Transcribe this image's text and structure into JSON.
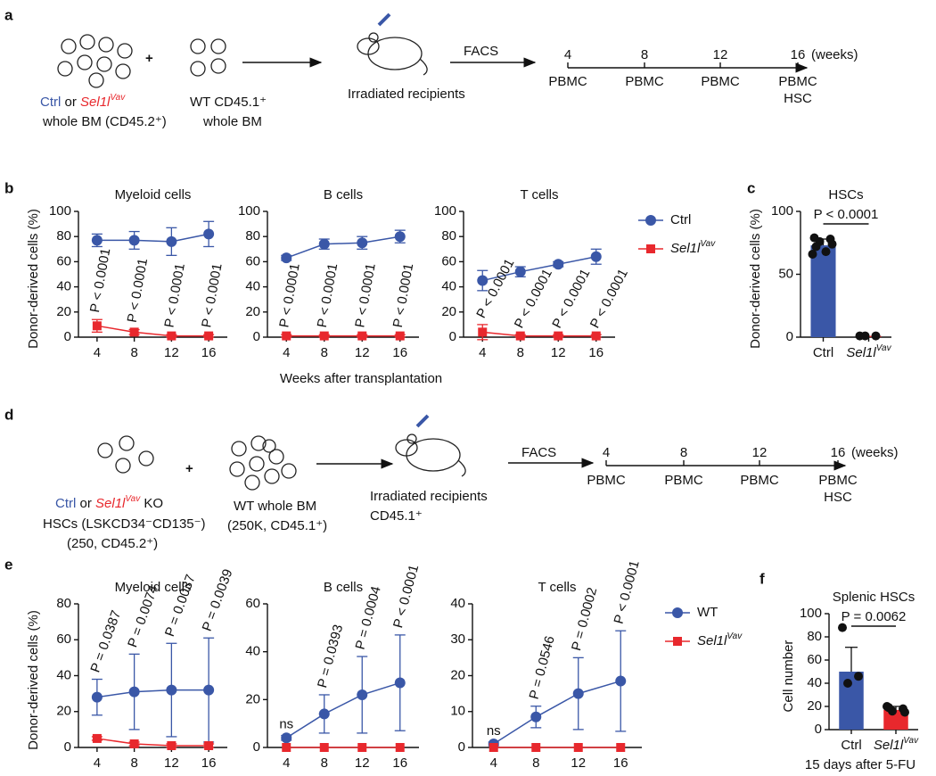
{
  "panel_labels": [
    "a",
    "b",
    "c",
    "d",
    "e",
    "f"
  ],
  "diagram_a": {
    "donor_ctrl": "Ctrl",
    "donor_or": "or",
    "donor_sel": "Sel1l",
    "donor_sel_sup": "Vav",
    "donor_line2": "whole BM (CD45.2⁺)",
    "plus": "+",
    "wt_line1": "WT CD45.1⁺",
    "wt_line2": "whole BM",
    "recipients": "Irradiated recipients",
    "facs": "FACS",
    "timeline_ticks": [
      "4",
      "8",
      "12",
      "16"
    ],
    "timeline_unit": "(weeks)",
    "samples": [
      "PBMC",
      "PBMC",
      "PBMC",
      "PBMC"
    ],
    "final_sample": "HSC"
  },
  "diagram_d": {
    "donor_ctrl": "Ctrl",
    "donor_or": "or",
    "donor_sel": "Sel1l",
    "donor_sel_sup": "Vav",
    "donor_ko": "KO",
    "donor_line2": "HSCs (LSKCD34⁻CD135⁻)",
    "donor_line3": "(250, CD45.2⁺)",
    "plus": "+",
    "wt_line1": "WT whole BM",
    "wt_line2": "(250K, CD45.1⁺)",
    "recipients": "Irradiated recipients",
    "recipients_line2": "CD45.1⁺",
    "facs": "FACS",
    "timeline_ticks": [
      "4",
      "8",
      "12",
      "16"
    ],
    "timeline_unit": "(weeks)",
    "samples": [
      "PBMC",
      "PBMC",
      "PBMC",
      "PBMC"
    ],
    "final_sample": "HSC"
  },
  "chart_data": [
    {
      "type": "line",
      "title": "Myeloid cells",
      "y_label": "Donor-derived cells (%)",
      "categories": [
        "4",
        "8",
        "12",
        "16"
      ],
      "ylim": [
        0,
        100
      ],
      "yticks": [
        0,
        20,
        40,
        60,
        80,
        100
      ],
      "series": [
        {
          "color": "#3a57a7",
          "marker": "circle",
          "values": [
            77,
            77,
            76,
            82
          ],
          "errors": [
            5,
            7,
            11,
            10
          ]
        },
        {
          "color": "#e8282d",
          "marker": "square",
          "values": [
            9,
            4,
            1,
            1
          ],
          "errors": [
            5,
            2,
            1,
            1
          ]
        }
      ],
      "annotations": [
        "P < 0.0001",
        "P < 0.0001",
        "P < 0.0001",
        "P < 0.0001"
      ]
    },
    {
      "type": "line",
      "title": "B cells",
      "x_label": "Weeks after transplantation",
      "categories": [
        "4",
        "8",
        "12",
        "16"
      ],
      "ylim": [
        0,
        100
      ],
      "yticks": [
        0,
        20,
        40,
        60,
        80,
        100
      ],
      "series": [
        {
          "color": "#3a57a7",
          "marker": "circle",
          "values": [
            63,
            74,
            75,
            80
          ],
          "errors": [
            2,
            4,
            5,
            5
          ]
        },
        {
          "color": "#e8282d",
          "marker": "square",
          "values": [
            1,
            1,
            1,
            1
          ],
          "errors": [
            1,
            1,
            1,
            1
          ]
        }
      ],
      "annotations": [
        "P < 0.0001",
        "P < 0.0001",
        "P < 0.0001",
        "P < 0.0001"
      ]
    },
    {
      "type": "line",
      "title": "T cells",
      "legend": true,
      "categories": [
        "4",
        "8",
        "12",
        "16"
      ],
      "ylim": [
        0,
        100
      ],
      "yticks": [
        0,
        20,
        40,
        60,
        80,
        100
      ],
      "series": [
        {
          "name": "Ctrl",
          "color": "#3a57a7",
          "marker": "circle",
          "values": [
            45,
            52,
            58,
            64
          ],
          "errors": [
            8,
            4,
            2,
            6
          ]
        },
        {
          "name": "Sel1l",
          "name_sup": "Vav",
          "color": "#e8282d",
          "marker": "square",
          "values": [
            4,
            1,
            1,
            1
          ],
          "errors": [
            6,
            1,
            1,
            1
          ]
        }
      ],
      "annotations": [
        "P < 0.0001",
        "P < 0.0001",
        "P < 0.0001",
        "P < 0.0001"
      ]
    },
    {
      "type": "bar",
      "title": "HSCs",
      "y_label": "Donor-derived cells (%)",
      "categories": [
        "Ctrl",
        "Sel1l"
      ],
      "category_superscripts": {
        "1": "Vav"
      },
      "ylim": [
        0,
        100
      ],
      "yticks": [
        0,
        50,
        100
      ],
      "values": [
        73,
        1
      ],
      "errors": [
        5,
        null
      ],
      "colors": [
        "#3a57a7",
        "#e8282d"
      ],
      "points": [
        [
          79,
          78,
          76,
          74,
          72,
          68,
          66
        ],
        [
          1,
          1,
          1
        ]
      ],
      "annotation": "P < 0.0001"
    },
    {
      "type": "line",
      "title": "Myeloid cells",
      "y_label": "Donor-derived cells (%)",
      "categories": [
        "4",
        "8",
        "12",
        "16"
      ],
      "ylim": [
        0,
        80
      ],
      "yticks": [
        0,
        20,
        40,
        60,
        80
      ],
      "series": [
        {
          "color": "#3a57a7",
          "marker": "circle",
          "values": [
            28,
            31,
            32,
            32
          ],
          "errors": [
            10,
            21,
            26,
            29
          ]
        },
        {
          "color": "#e8282d",
          "marker": "square",
          "values": [
            5,
            2,
            1,
            1
          ],
          "errors": [
            1,
            1,
            1,
            1
          ]
        }
      ],
      "annotations": [
        "P = 0.0387",
        "P = 0.0074",
        "P = 0.0037",
        "P = 0.0039"
      ]
    },
    {
      "type": "line",
      "title": "B cells",
      "categories": [
        "4",
        "8",
        "12",
        "16"
      ],
      "ylim": [
        0,
        60
      ],
      "yticks": [
        0,
        20,
        40,
        60
      ],
      "series": [
        {
          "color": "#3a57a7",
          "marker": "circle",
          "values": [
            4,
            14,
            22,
            27
          ],
          "errors": [
            1,
            8,
            16,
            20
          ]
        },
        {
          "color": "#e8282d",
          "marker": "square",
          "values": [
            0,
            0,
            0,
            0
          ],
          "errors": [
            null,
            null,
            null,
            null
          ]
        }
      ],
      "annotations": [
        "ns",
        "P = 0.0393",
        "P = 0.0004",
        "P < 0.0001"
      ]
    },
    {
      "type": "line",
      "title": "T cells",
      "legend": true,
      "categories": [
        "4",
        "8",
        "12",
        "16"
      ],
      "ylim": [
        0,
        40
      ],
      "yticks": [
        0,
        10,
        20,
        30,
        40
      ],
      "series": [
        {
          "name": "WT",
          "color": "#3a57a7",
          "marker": "circle",
          "values": [
            1,
            8.5,
            15,
            18.5
          ],
          "errors": [
            0.5,
            3,
            10,
            14
          ]
        },
        {
          "name": "Sel1l",
          "name_sup": "Vav",
          "color": "#e8282d",
          "marker": "square",
          "values": [
            0,
            0,
            0,
            0
          ],
          "errors": [
            null,
            null,
            null,
            null
          ]
        }
      ],
      "annotations": [
        "ns",
        "P = 0.0546",
        "P = 0.0002",
        "P < 0.0001"
      ]
    },
    {
      "type": "bar",
      "title": "Splenic HSCs",
      "y_label": "Cell number",
      "x_label": "15 days after 5-FU",
      "categories": [
        "Ctrl",
        "Sel1l"
      ],
      "category_superscripts": {
        "1": "Vav"
      },
      "ylim": [
        0,
        100
      ],
      "yticks": [
        0,
        20,
        40,
        60,
        80,
        100
      ],
      "values": [
        50,
        17
      ],
      "errors": [
        21,
        3
      ],
      "colors": [
        "#3a57a7",
        "#e8282d"
      ],
      "points": [
        [
          88,
          46,
          40
        ],
        [
          20,
          18,
          16,
          15,
          19
        ]
      ],
      "annotation": "P = 0.0062"
    }
  ]
}
